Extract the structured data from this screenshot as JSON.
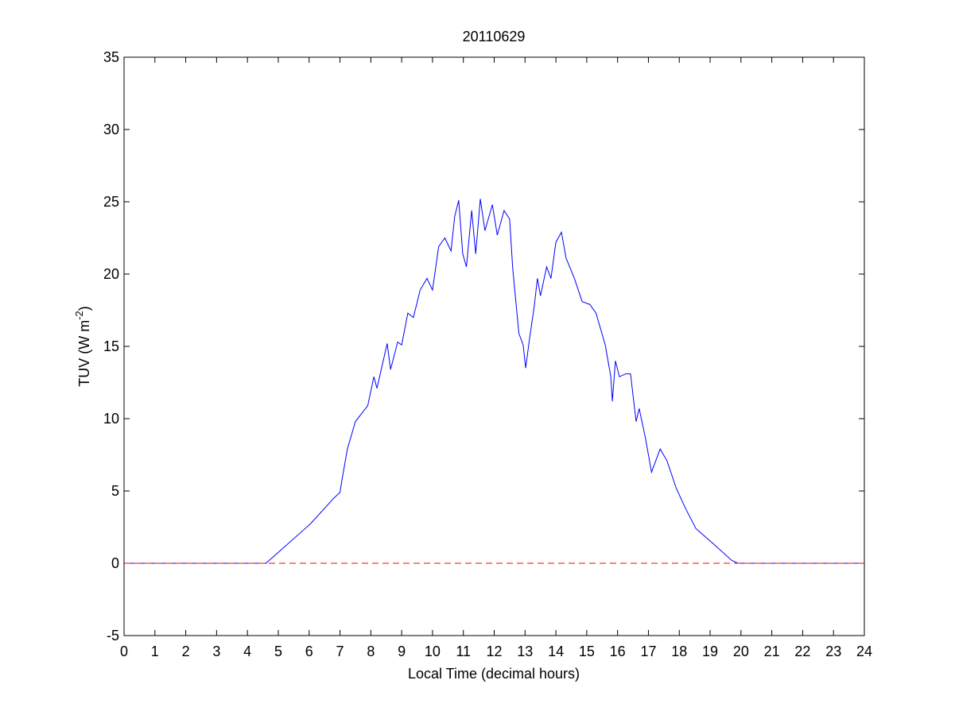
{
  "chart_data": {
    "type": "line",
    "title": "20110629",
    "xlabel": "Local Time (decimal hours)",
    "ylabel": {
      "text": "TUV (W m",
      "superscript": "-2",
      "suffix": ")"
    },
    "xlim": [
      0,
      24
    ],
    "xticks": [
      0,
      1,
      2,
      3,
      4,
      5,
      6,
      7,
      8,
      9,
      10,
      11,
      12,
      13,
      14,
      15,
      16,
      17,
      18,
      19,
      20,
      21,
      22,
      23,
      24
    ],
    "ylim": [
      -5,
      35
    ],
    "yticks": [
      -5,
      0,
      5,
      10,
      15,
      20,
      25,
      30,
      35
    ],
    "box": true,
    "series": [
      {
        "color": "#0000ff",
        "style": "solid",
        "x": [
          0,
          4.6,
          6.03,
          6.8,
          7.0,
          7.06,
          7.24,
          7.5,
          7.9,
          8.1,
          8.2,
          8.53,
          8.64,
          8.87,
          9.0,
          9.2,
          9.38,
          9.6,
          9.82,
          10.0,
          10.2,
          10.4,
          10.6,
          10.72,
          10.85,
          10.98,
          11.1,
          11.27,
          11.4,
          11.55,
          11.7,
          11.94,
          12.1,
          12.32,
          12.5,
          12.6,
          12.8,
          12.94,
          13.02,
          13.15,
          13.3,
          13.4,
          13.5,
          13.7,
          13.84,
          14.0,
          14.18,
          14.33,
          14.6,
          14.85,
          15.1,
          15.3,
          15.6,
          15.78,
          15.83,
          15.93,
          16.06,
          16.27,
          16.42,
          16.6,
          16.7,
          16.9,
          17.1,
          17.38,
          17.6,
          17.9,
          18.2,
          18.54,
          19.18,
          19.7,
          19.9,
          24
        ],
        "values": [
          0,
          0,
          2.7,
          4.5,
          4.9,
          5.7,
          7.9,
          9.8,
          10.9,
          12.9,
          12.1,
          15.2,
          13.4,
          15.3,
          15.1,
          17.3,
          17.0,
          18.9,
          19.7,
          18.9,
          21.9,
          22.5,
          21.6,
          24.0,
          25.1,
          21.4,
          20.5,
          24.4,
          21.4,
          25.2,
          23.0,
          24.8,
          22.7,
          24.4,
          23.8,
          20.4,
          15.9,
          15.1,
          13.5,
          15.6,
          17.8,
          19.7,
          18.5,
          20.5,
          19.7,
          22.2,
          22.9,
          21.1,
          19.7,
          18.1,
          17.9,
          17.3,
          15.1,
          12.9,
          11.2,
          14.0,
          12.9,
          13.1,
          13.1,
          9.8,
          10.7,
          8.7,
          6.3,
          7.9,
          7.1,
          5.2,
          3.8,
          2.4,
          1.2,
          0.2,
          0,
          0
        ]
      },
      {
        "color": "#ff0000",
        "style": "dashed",
        "x": [
          0,
          24
        ],
        "values": [
          0,
          0
        ]
      }
    ]
  }
}
